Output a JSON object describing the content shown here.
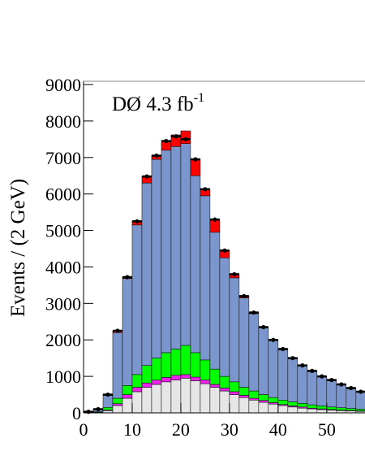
{
  "chart_data": {
    "type": "stacked_histogram",
    "y_label": "Events / (2 GeV)",
    "annotation": {
      "text": "DØ 4.3 fb",
      "sup": "-1"
    },
    "bins": [
      0,
      2,
      4,
      6,
      8,
      10,
      12,
      14,
      16,
      18,
      20,
      22,
      24,
      26,
      28,
      30,
      32,
      34,
      36,
      38,
      40,
      42,
      44,
      46,
      48,
      50,
      52,
      54,
      56,
      58
    ],
    "series": [
      {
        "color": "#e6e6e6",
        "values": [
          5,
          10,
          60,
          200,
          400,
          580,
          700,
          780,
          850,
          900,
          950,
          880,
          800,
          700,
          600,
          500,
          420,
          350,
          290,
          240,
          200,
          160,
          130,
          110,
          90,
          75,
          60,
          50,
          40
        ]
      },
      {
        "color": "#ee22ee",
        "values": [
          0,
          5,
          20,
          50,
          100,
          120,
          120,
          120,
          120,
          130,
          100,
          100,
          100,
          80,
          80,
          80,
          60,
          50,
          50,
          40,
          30,
          30,
          30,
          20,
          20,
          15,
          15,
          15,
          15
        ]
      },
      {
        "color": "#00ff00",
        "values": [
          5,
          15,
          70,
          150,
          250,
          350,
          480,
          600,
          680,
          720,
          800,
          670,
          550,
          420,
          320,
          270,
          220,
          200,
          160,
          140,
          120,
          110,
          100,
          90,
          80,
          70,
          65,
          55,
          45
        ]
      },
      {
        "color": "#7b96cc",
        "values": [
          20,
          70,
          330,
          1800,
          2930,
          4100,
          5000,
          5450,
          5550,
          5550,
          5530,
          4850,
          4500,
          3750,
          3250,
          2850,
          2450,
          2120,
          1830,
          1560,
          1380,
          1190,
          1030,
          920,
          800,
          730,
          630,
          550,
          470
        ]
      },
      {
        "color": "#ff0000",
        "values": [
          0,
          0,
          20,
          50,
          40,
          100,
          180,
          100,
          230,
          320,
          350,
          450,
          180,
          350,
          200,
          100,
          50,
          30,
          20,
          20,
          20,
          10,
          10,
          10,
          10,
          10,
          10,
          10,
          10
        ]
      }
    ],
    "data_points": {
      "color": "#000000",
      "values": [
        30,
        100,
        500,
        2250,
        3720,
        5250,
        6480,
        7050,
        7450,
        7580,
        7500,
        6950,
        6130,
        5300,
        4450,
        3800,
        3200,
        2750,
        2350,
        2000,
        1750,
        1500,
        1300,
        1150,
        1000,
        900,
        780,
        680,
        580
      ]
    },
    "xlim": [
      0,
      57.7
    ],
    "xticks": [
      0,
      10,
      20,
      30,
      40,
      50
    ],
    "ylim": [
      0,
      9000
    ],
    "yticks": [
      0,
      1000,
      2000,
      3000,
      4000,
      5000,
      6000,
      7000,
      8000,
      9000
    ]
  }
}
